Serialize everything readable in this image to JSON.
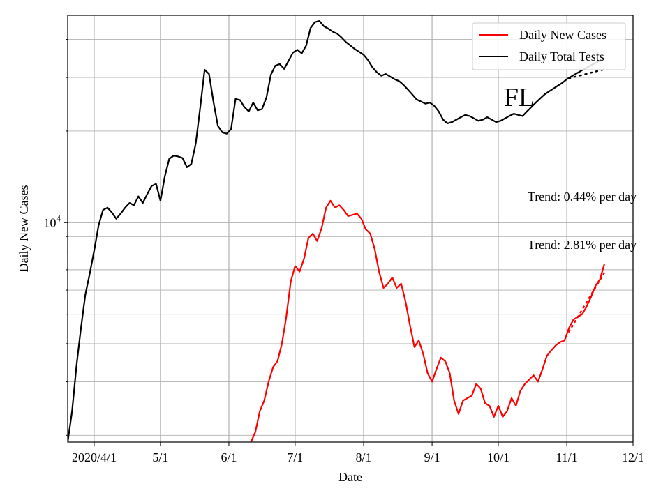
{
  "chart_data": {
    "type": "line",
    "title": "",
    "xlabel": "Date",
    "ylabel": "Daily New Cases",
    "yscale": "log",
    "xlim": [
      "2020-03-20",
      "2020-12-01"
    ],
    "ylim": [
      1900,
      48000
    ],
    "grid": true,
    "legend_position": "top-right",
    "x_ticks": [
      {
        "date": "2020-04-01",
        "label": "2020/4/1"
      },
      {
        "date": "2020-05-01",
        "label": "5/1"
      },
      {
        "date": "2020-06-01",
        "label": "6/1"
      },
      {
        "date": "2020-07-01",
        "label": "7/1"
      },
      {
        "date": "2020-08-01",
        "label": "8/1"
      },
      {
        "date": "2020-09-01",
        "label": "9/1"
      },
      {
        "date": "2020-10-01",
        "label": "10/1"
      },
      {
        "date": "2020-11-01",
        "label": "11/1"
      },
      {
        "date": "2020-12-01",
        "label": "12/1"
      }
    ],
    "y_ticks": [
      {
        "value": 10000,
        "base": "10",
        "exp": "4"
      }
    ],
    "annotations": {
      "state": "FL",
      "trend_tests": "Trend: 0.44% per day",
      "trend_cases": "Trend: 2.81% per day"
    },
    "series": [
      {
        "name": "Daily New Cases",
        "color": "#ff0000",
        "points": [
          [
            "2020-06-11",
            1900
          ],
          [
            "2020-06-13",
            2050
          ],
          [
            "2020-06-15",
            2400
          ],
          [
            "2020-06-17",
            2600
          ],
          [
            "2020-06-19",
            3000
          ],
          [
            "2020-06-21",
            3350
          ],
          [
            "2020-06-23",
            3500
          ],
          [
            "2020-06-25",
            4000
          ],
          [
            "2020-06-27",
            4900
          ],
          [
            "2020-06-29",
            6400
          ],
          [
            "2020-07-01",
            7200
          ],
          [
            "2020-07-03",
            6900
          ],
          [
            "2020-07-05",
            7600
          ],
          [
            "2020-07-07",
            8900
          ],
          [
            "2020-07-09",
            9200
          ],
          [
            "2020-07-11",
            8700
          ],
          [
            "2020-07-13",
            9600
          ],
          [
            "2020-07-15",
            11200
          ],
          [
            "2020-07-17",
            11800
          ],
          [
            "2020-07-19",
            11200
          ],
          [
            "2020-07-21",
            11400
          ],
          [
            "2020-07-23",
            11000
          ],
          [
            "2020-07-25",
            10500
          ],
          [
            "2020-07-27",
            10600
          ],
          [
            "2020-07-29",
            10700
          ],
          [
            "2020-07-31",
            10300
          ],
          [
            "2020-08-02",
            9500
          ],
          [
            "2020-08-04",
            9200
          ],
          [
            "2020-08-06",
            8200
          ],
          [
            "2020-08-08",
            6900
          ],
          [
            "2020-08-10",
            6100
          ],
          [
            "2020-08-12",
            6300
          ],
          [
            "2020-08-14",
            6600
          ],
          [
            "2020-08-16",
            6100
          ],
          [
            "2020-08-18",
            6300
          ],
          [
            "2020-08-20",
            5500
          ],
          [
            "2020-08-22",
            4600
          ],
          [
            "2020-08-24",
            3900
          ],
          [
            "2020-08-26",
            4100
          ],
          [
            "2020-08-28",
            3700
          ],
          [
            "2020-08-30",
            3200
          ],
          [
            "2020-09-01",
            3000
          ],
          [
            "2020-09-03",
            3300
          ],
          [
            "2020-09-05",
            3600
          ],
          [
            "2020-09-07",
            3500
          ],
          [
            "2020-09-09",
            3200
          ],
          [
            "2020-09-11",
            2600
          ],
          [
            "2020-09-13",
            2350
          ],
          [
            "2020-09-15",
            2600
          ],
          [
            "2020-09-17",
            2650
          ],
          [
            "2020-09-19",
            2700
          ],
          [
            "2020-09-21",
            2950
          ],
          [
            "2020-09-23",
            2850
          ],
          [
            "2020-09-25",
            2550
          ],
          [
            "2020-09-27",
            2500
          ],
          [
            "2020-09-29",
            2300
          ],
          [
            "2020-10-01",
            2500
          ],
          [
            "2020-10-03",
            2300
          ],
          [
            "2020-10-05",
            2400
          ],
          [
            "2020-10-07",
            2650
          ],
          [
            "2020-10-09",
            2500
          ],
          [
            "2020-10-11",
            2800
          ],
          [
            "2020-10-13",
            2950
          ],
          [
            "2020-10-15",
            3050
          ],
          [
            "2020-10-17",
            3150
          ],
          [
            "2020-10-19",
            3000
          ],
          [
            "2020-10-21",
            3300
          ],
          [
            "2020-10-23",
            3650
          ],
          [
            "2020-10-25",
            3800
          ],
          [
            "2020-10-27",
            3950
          ],
          [
            "2020-10-29",
            4050
          ],
          [
            "2020-10-31",
            4100
          ],
          [
            "2020-11-02",
            4500
          ],
          [
            "2020-11-04",
            4800
          ],
          [
            "2020-11-06",
            4900
          ],
          [
            "2020-11-08",
            5000
          ],
          [
            "2020-11-10",
            5300
          ],
          [
            "2020-11-12",
            5700
          ],
          [
            "2020-11-14",
            6200
          ],
          [
            "2020-11-16",
            6500
          ],
          [
            "2020-11-18",
            7300
          ]
        ]
      },
      {
        "name": "Daily Total Tests",
        "color": "#000000",
        "points": [
          [
            "2020-03-20",
            1900
          ],
          [
            "2020-03-22",
            2400
          ],
          [
            "2020-03-24",
            3400
          ],
          [
            "2020-03-26",
            4500
          ],
          [
            "2020-03-28",
            5800
          ],
          [
            "2020-03-30",
            6800
          ],
          [
            "2020-04-01",
            8100
          ],
          [
            "2020-04-03",
            9800
          ],
          [
            "2020-04-05",
            11000
          ],
          [
            "2020-04-07",
            11200
          ],
          [
            "2020-04-09",
            10800
          ],
          [
            "2020-04-11",
            10300
          ],
          [
            "2020-04-13",
            10700
          ],
          [
            "2020-04-15",
            11200
          ],
          [
            "2020-04-17",
            11600
          ],
          [
            "2020-04-19",
            11400
          ],
          [
            "2020-04-21",
            12200
          ],
          [
            "2020-04-23",
            11600
          ],
          [
            "2020-04-25",
            12400
          ],
          [
            "2020-04-27",
            13200
          ],
          [
            "2020-04-29",
            13400
          ],
          [
            "2020-05-01",
            11800
          ],
          [
            "2020-05-03",
            14200
          ],
          [
            "2020-05-05",
            16200
          ],
          [
            "2020-05-07",
            16600
          ],
          [
            "2020-05-09",
            16500
          ],
          [
            "2020-05-11",
            16300
          ],
          [
            "2020-05-13",
            15200
          ],
          [
            "2020-05-15",
            15600
          ],
          [
            "2020-05-17",
            18200
          ],
          [
            "2020-05-19",
            23800
          ],
          [
            "2020-05-21",
            31800
          ],
          [
            "2020-05-23",
            30800
          ],
          [
            "2020-05-25",
            25000
          ],
          [
            "2020-05-27",
            20800
          ],
          [
            "2020-05-29",
            19800
          ],
          [
            "2020-05-31",
            19600
          ],
          [
            "2020-06-02",
            20300
          ],
          [
            "2020-06-04",
            25500
          ],
          [
            "2020-06-06",
            25300
          ],
          [
            "2020-06-08",
            24000
          ],
          [
            "2020-06-10",
            23200
          ],
          [
            "2020-06-12",
            24800
          ],
          [
            "2020-06-14",
            23400
          ],
          [
            "2020-06-16",
            23600
          ],
          [
            "2020-06-18",
            25800
          ],
          [
            "2020-06-20",
            30600
          ],
          [
            "2020-06-22",
            32800
          ],
          [
            "2020-06-24",
            33200
          ],
          [
            "2020-06-26",
            32000
          ],
          [
            "2020-06-28",
            34000
          ],
          [
            "2020-06-30",
            36200
          ],
          [
            "2020-07-02",
            37000
          ],
          [
            "2020-07-04",
            36000
          ],
          [
            "2020-07-06",
            38200
          ],
          [
            "2020-07-08",
            43600
          ],
          [
            "2020-07-10",
            45600
          ],
          [
            "2020-07-12",
            46000
          ],
          [
            "2020-07-14",
            44200
          ],
          [
            "2020-07-16",
            43400
          ],
          [
            "2020-07-18",
            42400
          ],
          [
            "2020-07-20",
            41800
          ],
          [
            "2020-07-22",
            40600
          ],
          [
            "2020-07-24",
            39200
          ],
          [
            "2020-07-26",
            38200
          ],
          [
            "2020-07-28",
            37200
          ],
          [
            "2020-07-30",
            36400
          ],
          [
            "2020-08-01",
            35600
          ],
          [
            "2020-08-03",
            34200
          ],
          [
            "2020-08-05",
            32400
          ],
          [
            "2020-08-07",
            31200
          ],
          [
            "2020-08-09",
            30400
          ],
          [
            "2020-08-11",
            30800
          ],
          [
            "2020-08-13",
            30200
          ],
          [
            "2020-08-15",
            29600
          ],
          [
            "2020-08-17",
            29200
          ],
          [
            "2020-08-19",
            28400
          ],
          [
            "2020-08-21",
            27400
          ],
          [
            "2020-08-23",
            26400
          ],
          [
            "2020-08-25",
            25400
          ],
          [
            "2020-08-27",
            25000
          ],
          [
            "2020-08-29",
            24600
          ],
          [
            "2020-08-31",
            24800
          ],
          [
            "2020-09-02",
            24200
          ],
          [
            "2020-09-04",
            23200
          ],
          [
            "2020-09-06",
            21800
          ],
          [
            "2020-09-08",
            21200
          ],
          [
            "2020-09-10",
            21400
          ],
          [
            "2020-09-12",
            21800
          ],
          [
            "2020-09-14",
            22200
          ],
          [
            "2020-09-16",
            22600
          ],
          [
            "2020-09-18",
            22400
          ],
          [
            "2020-09-20",
            22000
          ],
          [
            "2020-09-22",
            21600
          ],
          [
            "2020-09-24",
            21800
          ],
          [
            "2020-09-26",
            22200
          ],
          [
            "2020-09-28",
            21800
          ],
          [
            "2020-09-30",
            21400
          ],
          [
            "2020-10-02",
            21600
          ],
          [
            "2020-10-04",
            22000
          ],
          [
            "2020-10-06",
            22400
          ],
          [
            "2020-10-08",
            22800
          ],
          [
            "2020-10-10",
            22600
          ],
          [
            "2020-10-12",
            22400
          ],
          [
            "2020-10-14",
            23200
          ],
          [
            "2020-10-16",
            24000
          ],
          [
            "2020-10-18",
            24800
          ],
          [
            "2020-10-20",
            25600
          ],
          [
            "2020-10-22",
            26400
          ],
          [
            "2020-10-24",
            27000
          ],
          [
            "2020-10-26",
            27600
          ],
          [
            "2020-10-28",
            28200
          ],
          [
            "2020-10-30",
            28800
          ],
          [
            "2020-11-01",
            29600
          ],
          [
            "2020-11-03",
            30200
          ],
          [
            "2020-11-05",
            30800
          ],
          [
            "2020-11-07",
            31400
          ],
          [
            "2020-11-09",
            32000
          ],
          [
            "2020-11-11",
            32600
          ],
          [
            "2020-11-13",
            33200
          ],
          [
            "2020-11-15",
            33800
          ],
          [
            "2020-11-17",
            34400
          ],
          [
            "2020-11-18",
            34800
          ]
        ]
      }
    ],
    "trend_lines": [
      {
        "color": "#ff0000",
        "points": [
          [
            "2020-11-02",
            4380
          ],
          [
            "2020-11-18",
            6850
          ]
        ]
      },
      {
        "color": "#000000",
        "points": [
          [
            "2020-11-02",
            29800
          ],
          [
            "2020-11-18",
            31900
          ]
        ]
      }
    ]
  }
}
